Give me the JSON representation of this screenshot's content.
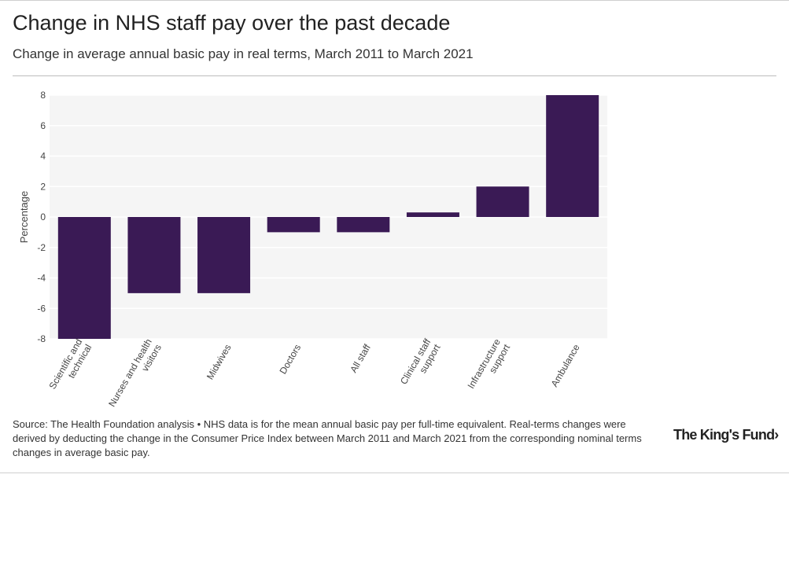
{
  "header": {
    "title": "Change in NHS staff pay over the past decade",
    "subtitle": "Change in average annual basic pay in real terms, March 2011 to March 2021"
  },
  "footer": {
    "source": "Source: The Health Foundation analysis • NHS data is for the mean annual basic pay per full-time equivalent. Real-terms changes were derived by deducting the change in the Consumer Price Index between March 2011 and March 2021 from the corresponding nominal terms changes in average basic pay.",
    "logo_text": "The King's Fund",
    "logo_chevron": "›"
  },
  "chart_data": {
    "type": "bar",
    "categories": [
      [
        "Scientific and",
        "technical"
      ],
      [
        "Nurses and health",
        "visitors"
      ],
      [
        "Midwives"
      ],
      [
        "Doctors"
      ],
      [
        "All staff"
      ],
      [
        "Clinical staff",
        "support"
      ],
      [
        "Infrastructure",
        "support"
      ],
      [
        "Ambulance"
      ]
    ],
    "values": [
      -8,
      -5,
      -5,
      -1,
      -1,
      0.3,
      2,
      8
    ],
    "title": "Change in NHS staff pay over the past decade",
    "xlabel": "",
    "ylabel": "Percentage",
    "ylim": [
      -8,
      8
    ],
    "yticks": [
      8,
      6,
      4,
      2,
      0,
      -2,
      -4,
      -6,
      -8
    ],
    "grid": true,
    "bar_color": "#3a1a55",
    "plot_background": "#f5f5f5",
    "grid_color": "#ffffff"
  }
}
